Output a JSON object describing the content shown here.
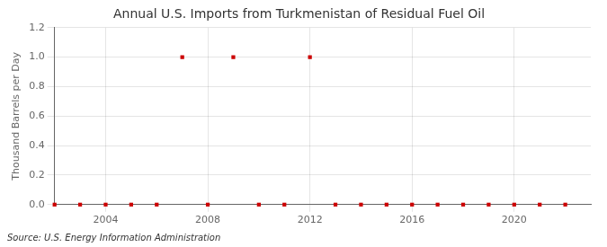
{
  "chart_data": {
    "type": "scatter",
    "title": "Annual U.S. Imports from Turkmenistan of Residual Fuel Oil",
    "ylabel": "Thousand Barrels per Day",
    "annotations": [
      "Source: U.S. Energy Information Administration"
    ],
    "x": [
      2002,
      2003,
      2004,
      2005,
      2006,
      2007,
      2008,
      2009,
      2010,
      2011,
      2012,
      2013,
      2014,
      2015,
      2016,
      2017,
      2018,
      2019,
      2020,
      2021,
      2022
    ],
    "values": [
      0,
      0,
      0,
      0,
      0,
      1.0,
      0,
      1.0,
      0,
      0,
      1.0,
      0,
      0,
      0,
      0,
      0,
      0,
      0,
      0,
      0,
      0
    ],
    "color": "#cc0000",
    "marker": "square",
    "xlim": [
      2002,
      2023
    ],
    "xticks": [
      2004,
      2008,
      2012,
      2016,
      2020
    ],
    "ylim": [
      0,
      1.2
    ],
    "yticks": [
      {
        "value": 0,
        "label": "0.0"
      },
      0.2,
      0.4,
      0.6,
      0.8,
      {
        "value": 1,
        "label": "1.0"
      },
      1.2
    ],
    "grid": true
  }
}
